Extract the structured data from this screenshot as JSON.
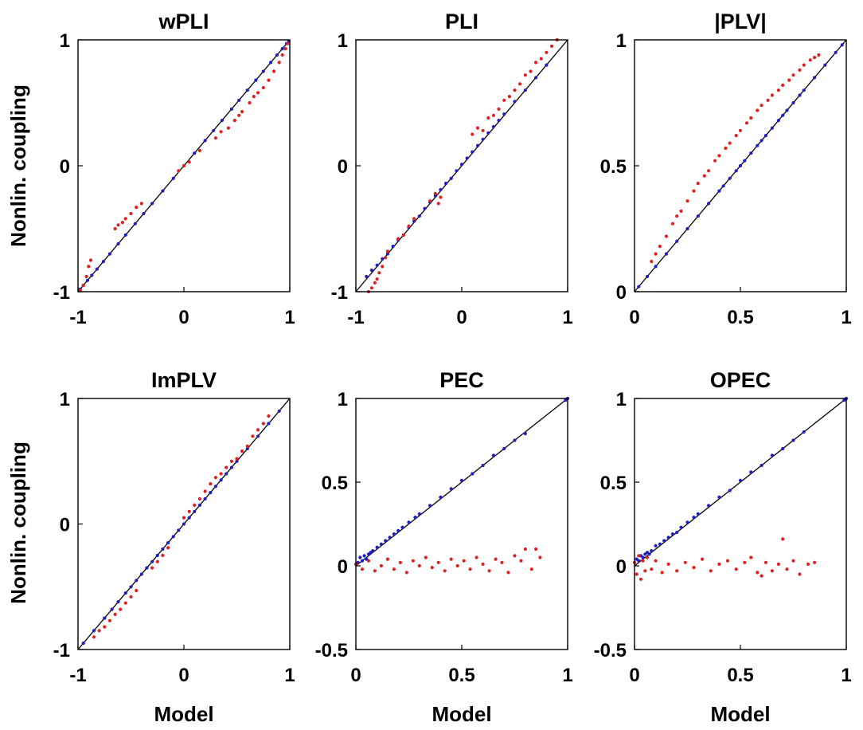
{
  "figure": {
    "ylabel": "Nonlin. coupling",
    "xlabel": "Model"
  },
  "colors": {
    "identity_line": "#000000",
    "series_linear": "#1f1fbf",
    "series_nonlinear": "#e02020"
  },
  "chart_data": [
    {
      "type": "scatter",
      "title": "wPLI",
      "xlabel": "",
      "ylabel": "Nonlin. coupling",
      "xlim": [
        -1,
        1
      ],
      "ylim": [
        -1,
        1
      ],
      "xticks": [
        "-1",
        "0",
        "1"
      ],
      "yticks": [
        "-1",
        "0",
        "1"
      ],
      "identity_line": true,
      "series": [
        {
          "name": "blue",
          "color": "#1f1fbf",
          "x": [
            -0.98,
            -0.95,
            -0.91,
            -0.87,
            -0.82,
            -0.76,
            -0.7,
            -0.62,
            -0.55,
            -0.46,
            -0.38,
            -0.3,
            -0.2,
            -0.1,
            0,
            0.1,
            0.2,
            0.28,
            0.36,
            0.45,
            0.52,
            0.6,
            0.68,
            0.75,
            0.82,
            0.88,
            0.93,
            0.97,
            0.99
          ],
          "y": [
            -0.98,
            -0.95,
            -0.91,
            -0.87,
            -0.82,
            -0.76,
            -0.7,
            -0.62,
            -0.55,
            -0.46,
            -0.38,
            -0.3,
            -0.2,
            -0.1,
            0,
            0.1,
            0.2,
            0.28,
            0.36,
            0.45,
            0.52,
            0.6,
            0.68,
            0.75,
            0.82,
            0.88,
            0.93,
            0.97,
            0.99
          ]
        },
        {
          "name": "red",
          "color": "#e02020",
          "x": [
            -0.98,
            -0.95,
            -0.92,
            -0.9,
            -0.88,
            -0.65,
            -0.62,
            -0.58,
            -0.55,
            -0.5,
            -0.45,
            -0.4,
            -0.05,
            0,
            0.05,
            0.15,
            0.3,
            0.35,
            0.42,
            0.48,
            0.52,
            0.55,
            0.62,
            0.66,
            0.7,
            0.75,
            0.8,
            0.85,
            0.9,
            0.93,
            0.96,
            0.98
          ],
          "y": [
            -0.99,
            -0.95,
            -0.88,
            -0.8,
            -0.75,
            -0.5,
            -0.47,
            -0.45,
            -0.42,
            -0.38,
            -0.33,
            -0.3,
            -0.04,
            0,
            0.03,
            0.12,
            0.22,
            0.27,
            0.3,
            0.36,
            0.4,
            0.43,
            0.5,
            0.55,
            0.58,
            0.62,
            0.68,
            0.75,
            0.82,
            0.88,
            0.93,
            0.97
          ]
        }
      ]
    },
    {
      "type": "scatter",
      "title": "PLI",
      "xlabel": "",
      "ylabel": "",
      "xlim": [
        -1,
        1
      ],
      "ylim": [
        -1,
        1
      ],
      "xticks": [
        "-1",
        "0",
        "1"
      ],
      "yticks": [
        "-1",
        "0",
        "1"
      ],
      "identity_line": true,
      "series": [
        {
          "name": "blue",
          "color": "#1f1fbf",
          "x": [
            -0.9,
            -0.85,
            -0.8,
            -0.75,
            -0.7,
            -0.65,
            -0.6,
            -0.55,
            -0.5,
            -0.45,
            -0.4,
            -0.35,
            -0.3,
            -0.25,
            -0.2,
            -0.15,
            -0.1,
            -0.05,
            0,
            0.05,
            0.1,
            0.15,
            0.2,
            0.25,
            0.3,
            0.35,
            0.4,
            0.5,
            0.6,
            0.7,
            0.8
          ],
          "y": [
            -0.88,
            -0.83,
            -0.79,
            -0.74,
            -0.7,
            -0.64,
            -0.59,
            -0.55,
            -0.49,
            -0.44,
            -0.4,
            -0.34,
            -0.29,
            -0.24,
            -0.19,
            -0.14,
            -0.1,
            -0.04,
            0.01,
            0.06,
            0.11,
            0.16,
            0.21,
            0.26,
            0.31,
            0.36,
            0.41,
            0.51,
            0.6,
            0.7,
            0.8
          ]
        },
        {
          "name": "red",
          "color": "#e02020",
          "x": [
            -0.88,
            -0.85,
            -0.82,
            -0.8,
            -0.78,
            -0.75,
            -0.72,
            -0.7,
            -0.6,
            -0.55,
            -0.5,
            -0.45,
            -0.3,
            -0.25,
            -0.22,
            -0.2,
            0.1,
            0.15,
            0.2,
            0.25,
            0.3,
            0.35,
            0.4,
            0.45,
            0.5,
            0.55,
            0.6,
            0.65,
            0.7,
            0.75,
            0.8,
            0.85,
            0.9
          ],
          "y": [
            -1,
            -0.97,
            -0.93,
            -0.9,
            -0.85,
            -0.8,
            -0.73,
            -0.68,
            -0.58,
            -0.55,
            -0.48,
            -0.42,
            -0.28,
            -0.22,
            -0.3,
            -0.25,
            0.25,
            0.3,
            0.28,
            0.38,
            0.4,
            0.45,
            0.52,
            0.55,
            0.6,
            0.65,
            0.72,
            0.75,
            0.82,
            0.85,
            0.9,
            0.95,
            1
          ]
        }
      ]
    },
    {
      "type": "scatter",
      "title": "|PLV|",
      "xlabel": "",
      "ylabel": "",
      "xlim": [
        0,
        1
      ],
      "ylim": [
        0,
        1
      ],
      "xticks": [
        "0",
        "0.5",
        "1"
      ],
      "yticks": [
        "0",
        "0.5",
        "1"
      ],
      "identity_line": true,
      "series": [
        {
          "name": "blue",
          "color": "#1f1fbf",
          "x": [
            0.02,
            0.06,
            0.1,
            0.15,
            0.2,
            0.25,
            0.3,
            0.35,
            0.4,
            0.42,
            0.45,
            0.48,
            0.5,
            0.52,
            0.55,
            0.58,
            0.6,
            0.62,
            0.65,
            0.68,
            0.7,
            0.72,
            0.75,
            0.78,
            0.8,
            0.85,
            0.9,
            0.95,
            0.98
          ],
          "y": [
            0.02,
            0.06,
            0.1,
            0.15,
            0.2,
            0.25,
            0.3,
            0.35,
            0.4,
            0.42,
            0.45,
            0.48,
            0.5,
            0.52,
            0.55,
            0.58,
            0.6,
            0.62,
            0.65,
            0.68,
            0.7,
            0.72,
            0.75,
            0.78,
            0.8,
            0.85,
            0.9,
            0.95,
            0.98
          ]
        },
        {
          "name": "red",
          "color": "#e02020",
          "x": [
            0.08,
            0.1,
            0.12,
            0.15,
            0.18,
            0.2,
            0.22,
            0.25,
            0.28,
            0.3,
            0.33,
            0.35,
            0.38,
            0.4,
            0.43,
            0.45,
            0.48,
            0.5,
            0.53,
            0.55,
            0.58,
            0.6,
            0.63,
            0.65,
            0.68,
            0.7,
            0.73,
            0.75,
            0.78,
            0.8,
            0.83,
            0.85,
            0.87
          ],
          "y": [
            0.12,
            0.15,
            0.18,
            0.22,
            0.27,
            0.3,
            0.32,
            0.36,
            0.4,
            0.43,
            0.46,
            0.48,
            0.52,
            0.54,
            0.57,
            0.59,
            0.62,
            0.64,
            0.67,
            0.69,
            0.72,
            0.74,
            0.76,
            0.78,
            0.8,
            0.82,
            0.84,
            0.86,
            0.88,
            0.9,
            0.92,
            0.93,
            0.94
          ]
        }
      ]
    },
    {
      "type": "scatter",
      "title": "ImPLV",
      "xlabel": "Model",
      "ylabel": "Nonlin. coupling",
      "xlim": [
        -1,
        1
      ],
      "ylim": [
        -1,
        1
      ],
      "xticks": [
        "-1",
        "0",
        "1"
      ],
      "yticks": [
        "-1",
        "0",
        "1"
      ],
      "identity_line": true,
      "series": [
        {
          "name": "blue",
          "color": "#1f1fbf",
          "x": [
            -0.95,
            -0.85,
            -0.75,
            -0.68,
            -0.62,
            -0.55,
            -0.5,
            -0.45,
            -0.4,
            -0.35,
            -0.3,
            -0.25,
            -0.2,
            -0.15,
            -0.1,
            -0.05,
            0,
            0.05,
            0.1,
            0.15,
            0.2,
            0.25,
            0.3,
            0.35,
            0.4,
            0.45,
            0.5,
            0.6,
            0.7,
            0.8,
            0.9
          ],
          "y": [
            -0.95,
            -0.85,
            -0.75,
            -0.68,
            -0.62,
            -0.55,
            -0.5,
            -0.45,
            -0.4,
            -0.35,
            -0.3,
            -0.25,
            -0.2,
            -0.15,
            -0.1,
            -0.05,
            0,
            0.05,
            0.1,
            0.15,
            0.2,
            0.25,
            0.3,
            0.35,
            0.4,
            0.45,
            0.5,
            0.6,
            0.7,
            0.8,
            0.9
          ]
        },
        {
          "name": "red",
          "color": "#e02020",
          "x": [
            -0.85,
            -0.8,
            -0.75,
            -0.7,
            -0.65,
            -0.6,
            -0.55,
            -0.5,
            -0.45,
            -0.3,
            -0.25,
            -0.2,
            -0.15,
            0,
            0.05,
            0.1,
            0.15,
            0.2,
            0.25,
            0.3,
            0.35,
            0.4,
            0.45,
            0.5,
            0.55,
            0.6,
            0.65,
            0.7,
            0.75,
            0.8
          ],
          "y": [
            -0.9,
            -0.85,
            -0.82,
            -0.77,
            -0.72,
            -0.68,
            -0.63,
            -0.58,
            -0.53,
            -0.35,
            -0.3,
            -0.25,
            -0.19,
            0.05,
            0.1,
            0.15,
            0.2,
            0.26,
            0.32,
            0.37,
            0.4,
            0.45,
            0.5,
            0.52,
            0.58,
            0.62,
            0.7,
            0.75,
            0.8,
            0.86
          ]
        }
      ]
    },
    {
      "type": "scatter",
      "title": "PEC",
      "xlabel": "Model",
      "ylabel": "",
      "xlim": [
        0,
        1
      ],
      "ylim": [
        -0.5,
        1
      ],
      "xticks": [
        "0",
        "0.5",
        "1"
      ],
      "yticks": [
        "-0.5",
        "0",
        "0.5",
        "1"
      ],
      "identity_line": true,
      "series": [
        {
          "name": "blue",
          "color": "#1f1fbf",
          "x": [
            0.01,
            0.02,
            0.03,
            0.04,
            0.05,
            0.06,
            0.07,
            0.08,
            0.1,
            0.12,
            0.14,
            0.16,
            0.18,
            0.2,
            0.22,
            0.25,
            0.28,
            0.3,
            0.35,
            0.4,
            0.45,
            0.5,
            0.55,
            0.6,
            0.65,
            0.7,
            0.75,
            0.8,
            0.99,
            1
          ],
          "y": [
            0.02,
            0.05,
            0.03,
            0.06,
            0.04,
            0.07,
            0.08,
            0.09,
            0.11,
            0.13,
            0.15,
            0.17,
            0.19,
            0.21,
            0.23,
            0.26,
            0.29,
            0.31,
            0.36,
            0.41,
            0.46,
            0.51,
            0.55,
            0.6,
            0.66,
            0.7,
            0.75,
            0.79,
            0.99,
            1
          ]
        },
        {
          "name": "red",
          "color": "#e02020",
          "x": [
            0,
            0.03,
            0.06,
            0.09,
            0.12,
            0.15,
            0.18,
            0.21,
            0.24,
            0.27,
            0.3,
            0.33,
            0.36,
            0.39,
            0.42,
            0.45,
            0.48,
            0.51,
            0.54,
            0.57,
            0.6,
            0.63,
            0.66,
            0.69,
            0.72,
            0.75,
            0.78,
            0.8,
            0.83,
            0.85,
            0.87
          ],
          "y": [
            0.01,
            -0.02,
            0.03,
            -0.03,
            0,
            0.04,
            -0.02,
            0.02,
            -0.04,
            0.03,
            0,
            0.05,
            -0.01,
            0.02,
            -0.03,
            0.04,
            0,
            0.03,
            -0.02,
            0.05,
            0.01,
            -0.03,
            0.04,
            0.02,
            -0.04,
            0.06,
            0.03,
            0.1,
            -0.02,
            0.1,
            0.05
          ]
        }
      ]
    },
    {
      "type": "scatter",
      "title": "OPEC",
      "xlabel": "Model",
      "ylabel": "",
      "xlim": [
        0,
        1
      ],
      "ylim": [
        -0.5,
        1
      ],
      "xticks": [
        "0",
        "0.5",
        "1"
      ],
      "yticks": [
        "-0.5",
        "0",
        "0.5",
        "1"
      ],
      "identity_line": true,
      "series": [
        {
          "name": "blue",
          "color": "#1f1fbf",
          "x": [
            0.01,
            0.02,
            0.03,
            0.04,
            0.05,
            0.06,
            0.07,
            0.08,
            0.1,
            0.12,
            0.14,
            0.16,
            0.18,
            0.2,
            0.22,
            0.25,
            0.28,
            0.3,
            0.35,
            0.4,
            0.45,
            0.5,
            0.55,
            0.6,
            0.65,
            0.7,
            0.75,
            0.8,
            0.99,
            1
          ],
          "y": [
            0.04,
            0.03,
            0.06,
            0.05,
            0.07,
            0.08,
            0.07,
            0.09,
            0.12,
            0.13,
            0.15,
            0.17,
            0.19,
            0.2,
            0.23,
            0.26,
            0.29,
            0.31,
            0.36,
            0.41,
            0.45,
            0.51,
            0.56,
            0.6,
            0.66,
            0.7,
            0.75,
            0.8,
            0.99,
            1
          ]
        },
        {
          "name": "red",
          "color": "#e02020",
          "x": [
            0,
            0.01,
            0.02,
            0.03,
            0.04,
            0.05,
            0.06,
            0.08,
            0.1,
            0.13,
            0.16,
            0.2,
            0.24,
            0.28,
            0.32,
            0.36,
            0.4,
            0.44,
            0.48,
            0.52,
            0.55,
            0.58,
            0.6,
            0.62,
            0.65,
            0.68,
            0.7,
            0.72,
            0.75,
            0.78,
            0.82,
            0.85
          ],
          "y": [
            0.02,
            -0.05,
            0.06,
            -0.08,
            0.03,
            -0.03,
            0.05,
            -0.02,
            0.03,
            -0.04,
            0.01,
            -0.03,
            0.02,
            -0.01,
            0.04,
            -0.03,
            0.01,
            0.03,
            -0.02,
            0.02,
            0.05,
            -0.04,
            -0.06,
            0.02,
            -0.03,
            0.01,
            0.16,
            -0.02,
            0.03,
            -0.05,
            0.01,
            0.02
          ]
        }
      ]
    }
  ]
}
